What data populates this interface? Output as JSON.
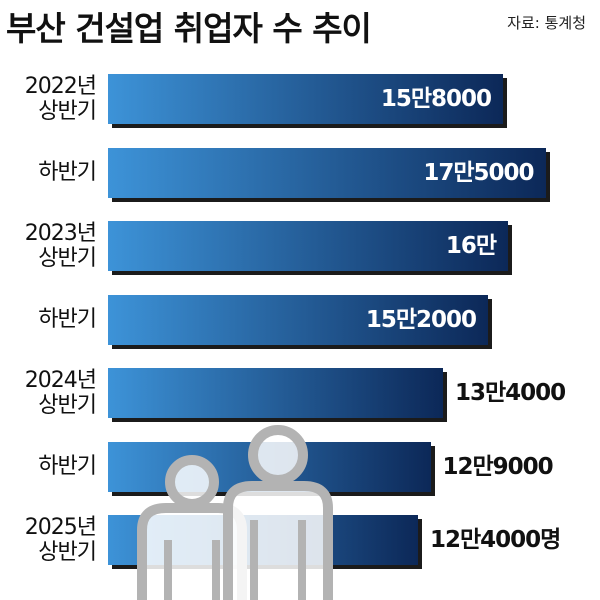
{
  "chart_data": {
    "type": "bar",
    "orientation": "horizontal",
    "title": "부산 건설업 취업자 수 추이",
    "source": "자료: 통계청",
    "categories": [
      "2022년\n상반기",
      "하반기",
      "2023년\n상반기",
      "하반기",
      "2024년\n상반기",
      "하반기",
      "2025년\n상반기"
    ],
    "values": [
      158000,
      175000,
      160000,
      152000,
      134000,
      129000,
      124000
    ],
    "value_labels": [
      "15만8000",
      "17만5000",
      "16만",
      "15만2000",
      "13만4000",
      "12만9000",
      "12만4000명"
    ],
    "color_start": "#3d93d8",
    "color_end": "#0c2858"
  }
}
